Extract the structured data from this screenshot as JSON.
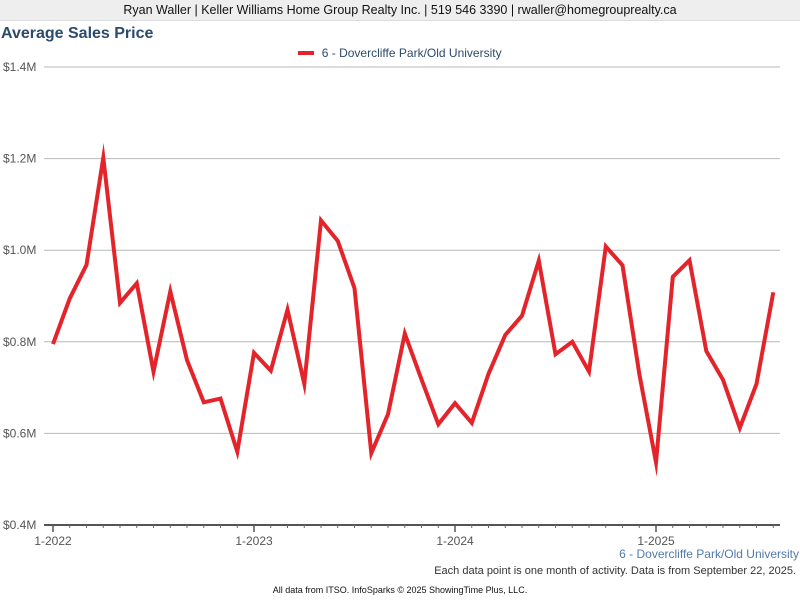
{
  "header": {
    "contact": "Ryan Waller | Keller Williams Home Group Realty Inc. | 519 546 3390 | rwaller@homegrouprealty.ca"
  },
  "colors": {
    "series": "#e3242b",
    "title": "#2c4a6b",
    "grid": "#b8b8b8"
  },
  "footer": {
    "series_label": "6 - Dovercliffe Park/Old University",
    "note": "Each data point is one month of activity. Data is from September 22, 2025.",
    "credit": "All data from ITSO. InfoSparks © 2025 ShowingTime Plus, LLC."
  },
  "chart_data": {
    "type": "line",
    "title": "Average Sales Price",
    "legend_position": "top-center",
    "grid": true,
    "ylim": [
      400000,
      1400000
    ],
    "y_ticks": [
      {
        "value": 400000,
        "label": "$0.4M"
      },
      {
        "value": 600000,
        "label": "$0.6M"
      },
      {
        "value": 800000,
        "label": "$0.8M"
      },
      {
        "value": 1000000,
        "label": "$1.0M"
      },
      {
        "value": 1200000,
        "label": "$1.2M"
      },
      {
        "value": 1400000,
        "label": "$1.4M"
      }
    ],
    "x_ticks": [
      {
        "index": 0,
        "label": "1-2022"
      },
      {
        "index": 12,
        "label": "1-2023"
      },
      {
        "index": 24,
        "label": "1-2024"
      },
      {
        "index": 36,
        "label": "1-2025"
      }
    ],
    "x": [
      "2022-01",
      "2022-02",
      "2022-03",
      "2022-04",
      "2022-05",
      "2022-06",
      "2022-07",
      "2022-08",
      "2022-09",
      "2022-10",
      "2022-11",
      "2022-12",
      "2023-01",
      "2023-02",
      "2023-03",
      "2023-04",
      "2023-05",
      "2023-06",
      "2023-07",
      "2023-08",
      "2023-09",
      "2023-10",
      "2023-11",
      "2023-12",
      "2024-01",
      "2024-02",
      "2024-03",
      "2024-04",
      "2024-05",
      "2024-06",
      "2024-07",
      "2024-08",
      "2024-09",
      "2024-10",
      "2024-11",
      "2024-12",
      "2025-01",
      "2025-02",
      "2025-03",
      "2025-04",
      "2025-05",
      "2025-06",
      "2025-07",
      "2025-08"
    ],
    "series": [
      {
        "name": "6 - Dovercliffe Park/Old University",
        "values": [
          795000,
          895000,
          968000,
          1202000,
          885000,
          928000,
          735000,
          910000,
          760000,
          668000,
          676000,
          560000,
          776000,
          737000,
          870000,
          708000,
          1065000,
          1020000,
          917000,
          557000,
          642000,
          818000,
          718000,
          620000,
          666000,
          623000,
          730000,
          815000,
          857000,
          977000,
          773000,
          800000,
          735000,
          1008000,
          967000,
          730000,
          537000,
          942000,
          978000,
          780000,
          717000,
          612000,
          708000,
          908000
        ]
      }
    ]
  }
}
